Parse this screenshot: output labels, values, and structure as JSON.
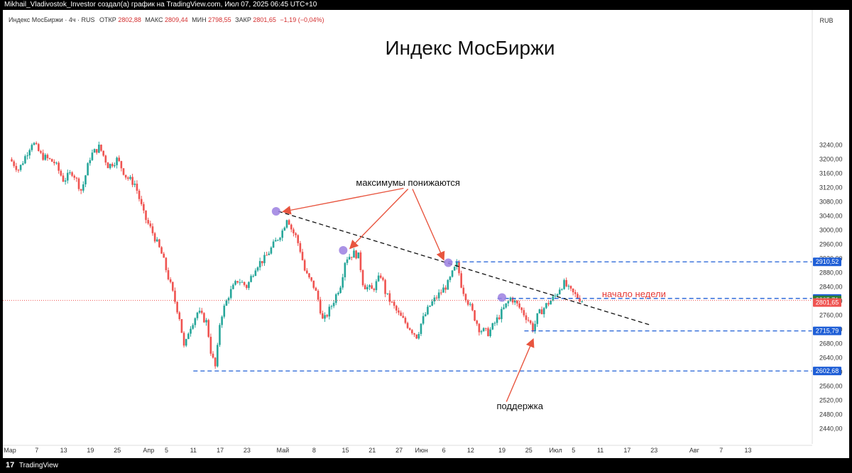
{
  "header": {
    "caption": "Mikhail_Vladivostok_Investor создал(а) график на TradingView.com, Июл 07, 2025 06:45 UTC+10"
  },
  "footer": {
    "logo_glyph": "17",
    "brand": "TradingView"
  },
  "chart_data": {
    "type": "candlestick",
    "title": "Индекс МосБиржи",
    "legend": {
      "symbol": "Индекс МосБиржи · 4ч · RUS",
      "open_label": "ОТКР",
      "open": "2802,88",
      "high_label": "МАКС",
      "high": "2809,44",
      "low_label": "МИН",
      "low": "2798,55",
      "close_label": "ЗАКР",
      "close": "2801,65",
      "change": "−1,19 (−0,04%)"
    },
    "currency": "RUB",
    "ylim": [
      2400,
      3300
    ],
    "y_ticks": [
      "2440,00",
      "2480,00",
      "2520,00",
      "2560,00",
      "2600,00",
      "2640,00",
      "2680,00",
      "2720,00",
      "2760,00",
      "2800,00",
      "2840,00",
      "2880,00",
      "2920,00",
      "2960,00",
      "3000,00",
      "3040,00",
      "3080,00",
      "3120,00",
      "3160,00",
      "3200,00",
      "3240,00"
    ],
    "x_ticks": [
      {
        "label": "Мар",
        "day": 0
      },
      {
        "label": "7",
        "day": 6
      },
      {
        "label": "13",
        "day": 12
      },
      {
        "label": "19",
        "day": 18
      },
      {
        "label": "25",
        "day": 24
      },
      {
        "label": "Апр",
        "day": 31
      },
      {
        "label": "5",
        "day": 35
      },
      {
        "label": "11",
        "day": 41
      },
      {
        "label": "17",
        "day": 47
      },
      {
        "label": "23",
        "day": 53
      },
      {
        "label": "Май",
        "day": 61
      },
      {
        "label": "8",
        "day": 68
      },
      {
        "label": "15",
        "day": 75
      },
      {
        "label": "21",
        "day": 81
      },
      {
        "label": "27",
        "day": 87
      },
      {
        "label": "Июн",
        "day": 92
      },
      {
        "label": "6",
        "day": 97
      },
      {
        "label": "12",
        "day": 103
      },
      {
        "label": "19",
        "day": 110
      },
      {
        "label": "25",
        "day": 116
      },
      {
        "label": "Июл",
        "day": 122
      },
      {
        "label": "5",
        "day": 126
      },
      {
        "label": "11",
        "day": 132
      },
      {
        "label": "17",
        "day": 138
      },
      {
        "label": "23",
        "day": 144
      },
      {
        "label": "Авг",
        "day": 153
      },
      {
        "label": "7",
        "day": 159
      },
      {
        "label": "13",
        "day": 165
      }
    ],
    "price_path": [
      [
        0,
        3200
      ],
      [
        2,
        3170
      ],
      [
        5,
        3250
      ],
      [
        7,
        3210
      ],
      [
        10,
        3190
      ],
      [
        12,
        3140
      ],
      [
        14,
        3165
      ],
      [
        16,
        3110
      ],
      [
        18,
        3210
      ],
      [
        20,
        3235
      ],
      [
        22,
        3180
      ],
      [
        24,
        3200
      ],
      [
        26,
        3150
      ],
      [
        28,
        3130
      ],
      [
        30,
        3040
      ],
      [
        32,
        2990
      ],
      [
        34,
        2930
      ],
      [
        36,
        2840
      ],
      [
        38,
        2750
      ],
      [
        39,
        2660
      ],
      [
        40,
        2720
      ],
      [
        42,
        2770
      ],
      [
        44,
        2740
      ],
      [
        45,
        2650
      ],
      [
        46,
        2610
      ],
      [
        47,
        2750
      ],
      [
        49,
        2820
      ],
      [
        51,
        2860
      ],
      [
        53,
        2840
      ],
      [
        55,
        2900
      ],
      [
        57,
        2920
      ],
      [
        59,
        2960
      ],
      [
        61,
        3000
      ],
      [
        62,
        3040
      ],
      [
        63,
        3000
      ],
      [
        64,
        2980
      ],
      [
        65,
        2940
      ],
      [
        66,
        2880
      ],
      [
        68,
        2840
      ],
      [
        69,
        2800
      ],
      [
        70,
        2740
      ],
      [
        72,
        2790
      ],
      [
        74,
        2850
      ],
      [
        75,
        2920
      ],
      [
        77,
        2935
      ],
      [
        78,
        2925
      ],
      [
        79,
        2845
      ],
      [
        81,
        2830
      ],
      [
        83,
        2875
      ],
      [
        84,
        2820
      ],
      [
        86,
        2780
      ],
      [
        87,
        2760
      ],
      [
        89,
        2730
      ],
      [
        91,
        2700
      ],
      [
        92,
        2740
      ],
      [
        94,
        2790
      ],
      [
        96,
        2820
      ],
      [
        98,
        2850
      ],
      [
        99,
        2880
      ],
      [
        100,
        2905
      ],
      [
        101,
        2840
      ],
      [
        103,
        2780
      ],
      [
        105,
        2720
      ],
      [
        107,
        2710
      ],
      [
        109,
        2750
      ],
      [
        111,
        2790
      ],
      [
        112,
        2810
      ],
      [
        114,
        2780
      ],
      [
        116,
        2745
      ],
      [
        117,
        2720
      ],
      [
        118,
        2760
      ],
      [
        120,
        2790
      ],
      [
        122,
        2815
      ],
      [
        123,
        2840
      ],
      [
        124,
        2850
      ],
      [
        125,
        2830
      ],
      [
        126,
        2820
      ],
      [
        127,
        2810
      ],
      [
        128,
        2802
      ]
    ],
    "levels": [
      {
        "value": 2910.52,
        "label": "2910,52",
        "from_day": 98
      },
      {
        "value": 2807.34,
        "label": "2807,34",
        "from_day": 109
      },
      {
        "value": 2715.79,
        "label": "2715,79",
        "from_day": 115
      },
      {
        "value": 2602.68,
        "label": "2602,68",
        "from_day": 41
      }
    ],
    "current": {
      "value": 2801.65,
      "label": "2801,65"
    },
    "alt_price": {
      "value": 2805.71,
      "label": "2805,71"
    },
    "trendline": {
      "from": [
        60,
        3053
      ],
      "to": [
        143,
        2733
      ]
    },
    "markers": [
      {
        "day": 59.5,
        "value": 3053
      },
      {
        "day": 74.5,
        "value": 2943
      },
      {
        "day": 98,
        "value": 2908
      },
      {
        "day": 110,
        "value": 2810
      }
    ],
    "annotations": {
      "highs_lower": {
        "text": "максимумы понижаются",
        "day": 89,
        "value": 3125
      },
      "week_start": {
        "text": "начало недели",
        "day": 139.5,
        "value": 2811
      },
      "support": {
        "text": "поддержка",
        "day": 114,
        "value": 2495
      }
    },
    "arrows": [
      {
        "from": [
          88,
          3118
        ],
        "to": [
          61,
          3052
        ]
      },
      {
        "from": [
          89,
          3116
        ],
        "to": [
          76,
          2948
        ]
      },
      {
        "from": [
          90,
          3116
        ],
        "to": [
          97,
          2916
        ]
      },
      {
        "from": [
          111,
          2516
        ],
        "to": [
          117,
          2693
        ]
      }
    ]
  }
}
